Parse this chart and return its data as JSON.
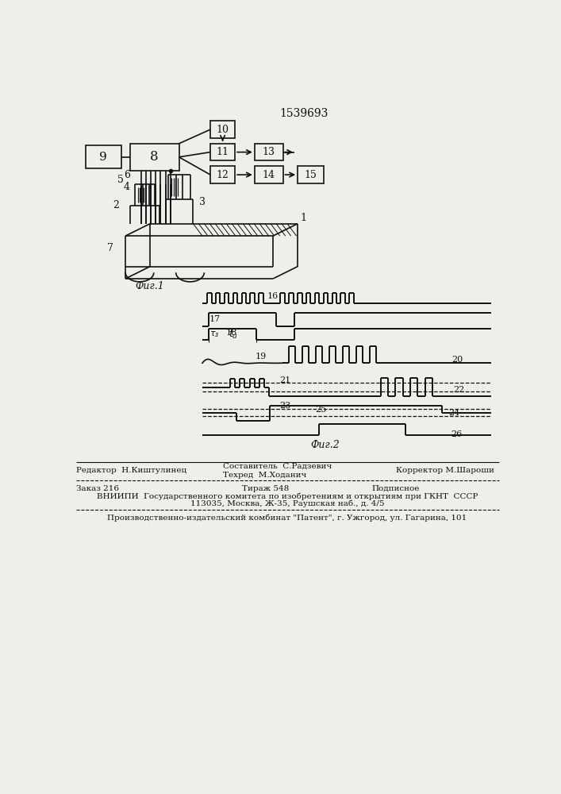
{
  "title": "1539693",
  "bg": "#f0eeea",
  "lc": "#111111",
  "fig1_label": "Фиг.1",
  "fig2_label": "Фиг.2",
  "footer": {
    "editor": "Редактор  Н.Киштулинец",
    "composer": "Составитель  С.Радзевич",
    "techred": "Техред  М.Ходанич",
    "corrector": "Корректор М.Шароши",
    "order": "Заказ 216",
    "tirazh": "Тираж 548",
    "podpisnoe": "Подписное",
    "vniiipi": "ВНИИПИ  Государственного комитета по изобретениям и открытиям при ГКНТ  СССР",
    "address": "113035, Москва, Ж-35, Раушская наб., д. 4/5",
    "factory": "Производственно-издательский комбинат \"Патент\", г. Ужгород, ул. Гагарина, 101"
  }
}
